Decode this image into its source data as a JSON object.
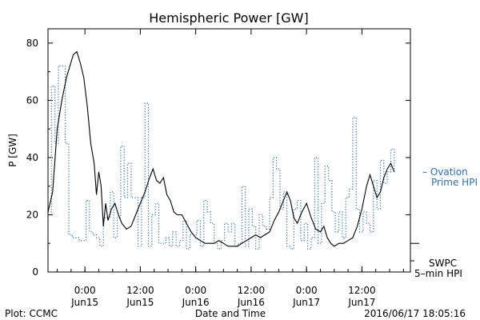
{
  "chart_data": {
    "type": "line",
    "title": "Hemispheric Power [GW]",
    "xlabel": "Date and Time",
    "ylabel": "P [GW]",
    "ylim": [
      0,
      85
    ],
    "yticks": [
      0,
      20,
      40,
      60,
      80
    ],
    "xlim": [
      "2016-06-14 16:00",
      "2016-06-17 22:30"
    ],
    "xticks": [
      {
        "t": "2016-06-15 00:00",
        "label1": "0:00",
        "label2": "Jun15"
      },
      {
        "t": "2016-06-15 12:00",
        "label1": "12:00",
        "label2": "Jun15"
      },
      {
        "t": "2016-06-16 00:00",
        "label1": "0:00",
        "label2": "Jun16"
      },
      {
        "t": "2016-06-16 12:00",
        "label1": "12:00",
        "label2": "Jun16"
      },
      {
        "t": "2016-06-17 00:00",
        "label1": "0:00",
        "label2": "Jun17"
      },
      {
        "t": "2016-06-17 12:00",
        "label1": "12:00",
        "label2": "Jun17"
      }
    ],
    "series": [
      {
        "name": "Ovation Prime HPI",
        "label_lines": [
          "– Ovation",
          "Prime HPI"
        ],
        "style": "dotted-step",
        "color": "#2a6fbf",
        "points": [
          [
            "2016-06-14 16:00",
            21
          ],
          [
            "2016-06-14 16:45",
            65
          ],
          [
            "2016-06-14 17:30",
            45
          ],
          [
            "2016-06-14 18:15",
            72
          ],
          [
            "2016-06-14 19:45",
            45
          ],
          [
            "2016-06-14 20:30",
            13
          ],
          [
            "2016-06-14 21:15",
            12
          ],
          [
            "2016-06-14 22:45",
            11
          ],
          [
            "2016-06-15 00:15",
            25
          ],
          [
            "2016-06-15 01:00",
            14
          ],
          [
            "2016-06-15 01:45",
            13
          ],
          [
            "2016-06-15 02:30",
            12
          ],
          [
            "2016-06-15 03:15",
            9
          ],
          [
            "2016-06-15 04:00",
            19
          ],
          [
            "2016-06-15 05:30",
            28
          ],
          [
            "2016-06-15 06:15",
            12
          ],
          [
            "2016-06-15 07:00",
            19
          ],
          [
            "2016-06-15 07:45",
            44
          ],
          [
            "2016-06-15 08:30",
            26
          ],
          [
            "2016-06-15 09:15",
            38
          ],
          [
            "2016-06-15 10:00",
            26
          ],
          [
            "2016-06-15 11:30",
            9
          ],
          [
            "2016-06-15 12:15",
            26
          ],
          [
            "2016-06-15 13:00",
            59
          ],
          [
            "2016-06-15 13:45",
            9
          ],
          [
            "2016-06-15 14:30",
            20
          ],
          [
            "2016-06-15 15:15",
            24
          ],
          [
            "2016-06-15 16:00",
            10
          ],
          [
            "2016-06-15 17:30",
            12
          ],
          [
            "2016-06-15 18:15",
            9
          ],
          [
            "2016-06-15 19:00",
            14
          ],
          [
            "2016-06-15 19:45",
            9
          ],
          [
            "2016-06-15 20:30",
            11
          ],
          [
            "2016-06-15 21:15",
            18
          ],
          [
            "2016-06-15 22:00",
            8
          ],
          [
            "2016-06-15 22:45",
            13
          ],
          [
            "2016-06-16 00:15",
            18
          ],
          [
            "2016-06-16 01:00",
            9
          ],
          [
            "2016-06-16 01:45",
            25
          ],
          [
            "2016-06-16 02:30",
            21
          ],
          [
            "2016-06-16 03:15",
            17
          ],
          [
            "2016-06-16 04:00",
            10
          ],
          [
            "2016-06-16 04:45",
            8
          ],
          [
            "2016-06-16 05:30",
            11
          ],
          [
            "2016-06-16 06:15",
            17
          ],
          [
            "2016-06-16 07:00",
            14
          ],
          [
            "2016-06-16 07:45",
            17
          ],
          [
            "2016-06-16 08:30",
            9
          ],
          [
            "2016-06-16 09:15",
            10
          ],
          [
            "2016-06-16 10:00",
            30
          ],
          [
            "2016-06-16 10:45",
            9
          ],
          [
            "2016-06-16 11:30",
            22
          ],
          [
            "2016-06-16 12:15",
            16
          ],
          [
            "2016-06-16 13:00",
            8
          ],
          [
            "2016-06-16 13:45",
            20
          ],
          [
            "2016-06-16 14:30",
            16
          ],
          [
            "2016-06-16 15:15",
            15
          ],
          [
            "2016-06-16 16:00",
            26
          ],
          [
            "2016-06-16 16:45",
            40
          ],
          [
            "2016-06-16 17:30",
            36
          ],
          [
            "2016-06-16 18:15",
            22
          ],
          [
            "2016-06-16 19:00",
            28
          ],
          [
            "2016-06-16 19:45",
            9
          ],
          [
            "2016-06-16 20:30",
            8
          ],
          [
            "2016-06-16 21:15",
            22
          ],
          [
            "2016-06-16 22:00",
            25
          ],
          [
            "2016-06-16 22:45",
            11
          ],
          [
            "2016-06-16 23:30",
            17
          ],
          [
            "2016-06-17 00:15",
            8
          ],
          [
            "2016-06-17 01:00",
            12
          ],
          [
            "2016-06-17 01:45",
            40
          ],
          [
            "2016-06-17 02:30",
            10
          ],
          [
            "2016-06-17 03:15",
            24
          ],
          [
            "2016-06-17 04:00",
            37
          ],
          [
            "2016-06-17 04:45",
            32
          ],
          [
            "2016-06-17 05:30",
            21
          ],
          [
            "2016-06-17 06:15",
            14
          ],
          [
            "2016-06-17 07:00",
            21
          ],
          [
            "2016-06-17 07:45",
            12
          ],
          [
            "2016-06-17 08:30",
            26
          ],
          [
            "2016-06-17 09:15",
            29
          ],
          [
            "2016-06-17 10:00",
            54
          ],
          [
            "2016-06-17 10:45",
            22
          ],
          [
            "2016-06-17 11:30",
            14
          ],
          [
            "2016-06-17 12:15",
            21
          ],
          [
            "2016-06-17 13:00",
            17
          ],
          [
            "2016-06-17 13:45",
            14
          ],
          [
            "2016-06-17 14:30",
            32
          ],
          [
            "2016-06-17 15:15",
            22
          ],
          [
            "2016-06-17 16:00",
            39
          ],
          [
            "2016-06-17 16:45",
            31
          ],
          [
            "2016-06-17 17:30",
            35
          ],
          [
            "2016-06-17 18:15",
            43
          ],
          [
            "2016-06-17 19:00",
            35
          ]
        ]
      },
      {
        "name": "SWPC 5-min HPI",
        "label_lines": [
          "SWPC",
          "5–min HPI"
        ],
        "style": "solid",
        "color": "#000000",
        "points": [
          [
            "2016-06-14 16:00",
            21
          ],
          [
            "2016-06-14 17:00",
            28
          ],
          [
            "2016-06-14 18:00",
            50
          ],
          [
            "2016-06-14 19:00",
            60
          ],
          [
            "2016-06-14 20:00",
            68
          ],
          [
            "2016-06-14 20:45",
            72
          ],
          [
            "2016-06-14 21:30",
            76
          ],
          [
            "2016-06-14 22:15",
            77
          ],
          [
            "2016-06-14 23:00",
            73
          ],
          [
            "2016-06-14 23:45",
            68
          ],
          [
            "2016-06-15 00:30",
            58
          ],
          [
            "2016-06-15 01:15",
            45
          ],
          [
            "2016-06-15 02:00",
            38
          ],
          [
            "2016-06-15 02:30",
            27
          ],
          [
            "2016-06-15 03:00",
            35
          ],
          [
            "2016-06-15 03:30",
            30
          ],
          [
            "2016-06-15 04:00",
            16
          ],
          [
            "2016-06-15 04:30",
            24
          ],
          [
            "2016-06-15 05:00",
            18
          ],
          [
            "2016-06-15 05:45",
            22
          ],
          [
            "2016-06-15 06:30",
            24
          ],
          [
            "2016-06-15 07:15",
            20
          ],
          [
            "2016-06-15 08:00",
            17
          ],
          [
            "2016-06-15 09:00",
            15
          ],
          [
            "2016-06-15 10:00",
            16
          ],
          [
            "2016-06-15 11:00",
            20
          ],
          [
            "2016-06-15 12:00",
            24
          ],
          [
            "2016-06-15 13:00",
            28
          ],
          [
            "2016-06-15 14:00",
            33
          ],
          [
            "2016-06-15 14:45",
            36
          ],
          [
            "2016-06-15 15:30",
            32
          ],
          [
            "2016-06-15 16:15",
            31
          ],
          [
            "2016-06-15 17:00",
            33
          ],
          [
            "2016-06-15 17:45",
            27
          ],
          [
            "2016-06-15 18:30",
            25
          ],
          [
            "2016-06-15 19:15",
            21
          ],
          [
            "2016-06-15 20:00",
            20
          ],
          [
            "2016-06-15 21:00",
            20
          ],
          [
            "2016-06-15 22:00",
            17
          ],
          [
            "2016-06-15 23:00",
            14
          ],
          [
            "2016-06-16 00:00",
            12
          ],
          [
            "2016-06-16 01:00",
            11
          ],
          [
            "2016-06-16 02:00",
            10
          ],
          [
            "2016-06-16 03:00",
            10
          ],
          [
            "2016-06-16 04:00",
            10
          ],
          [
            "2016-06-16 05:00",
            11
          ],
          [
            "2016-06-16 06:00",
            10
          ],
          [
            "2016-06-16 07:00",
            9
          ],
          [
            "2016-06-16 08:00",
            9
          ],
          [
            "2016-06-16 09:00",
            9
          ],
          [
            "2016-06-16 10:00",
            10
          ],
          [
            "2016-06-16 11:00",
            11
          ],
          [
            "2016-06-16 12:00",
            12
          ],
          [
            "2016-06-16 13:00",
            13
          ],
          [
            "2016-06-16 14:00",
            12
          ],
          [
            "2016-06-16 15:00",
            13
          ],
          [
            "2016-06-16 16:00",
            14
          ],
          [
            "2016-06-16 17:00",
            18
          ],
          [
            "2016-06-16 18:00",
            21
          ],
          [
            "2016-06-16 19:00",
            25
          ],
          [
            "2016-06-16 19:45",
            28
          ],
          [
            "2016-06-16 20:30",
            25
          ],
          [
            "2016-06-16 21:15",
            19
          ],
          [
            "2016-06-16 22:00",
            17
          ],
          [
            "2016-06-16 23:00",
            21
          ],
          [
            "2016-06-17 00:00",
            24
          ],
          [
            "2016-06-17 01:00",
            19
          ],
          [
            "2016-06-17 02:00",
            15
          ],
          [
            "2016-06-17 03:00",
            14
          ],
          [
            "2016-06-17 03:45",
            16
          ],
          [
            "2016-06-17 04:30",
            12
          ],
          [
            "2016-06-17 05:15",
            10
          ],
          [
            "2016-06-17 06:00",
            9
          ],
          [
            "2016-06-17 07:00",
            10
          ],
          [
            "2016-06-17 08:00",
            10
          ],
          [
            "2016-06-17 09:00",
            11
          ],
          [
            "2016-06-17 10:00",
            12
          ],
          [
            "2016-06-17 11:00",
            16
          ],
          [
            "2016-06-17 12:00",
            22
          ],
          [
            "2016-06-17 13:00",
            30
          ],
          [
            "2016-06-17 13:45",
            34
          ],
          [
            "2016-06-17 14:30",
            30
          ],
          [
            "2016-06-17 15:15",
            26
          ],
          [
            "2016-06-17 16:00",
            28
          ],
          [
            "2016-06-17 16:45",
            33
          ],
          [
            "2016-06-17 17:30",
            36
          ],
          [
            "2016-06-17 18:15",
            38
          ],
          [
            "2016-06-17 19:00",
            35
          ]
        ]
      }
    ],
    "legend_placement": "right",
    "footer_left": "Plot: CCMC",
    "footer_right": "2016/06/17 18:05:16",
    "grid": false
  }
}
